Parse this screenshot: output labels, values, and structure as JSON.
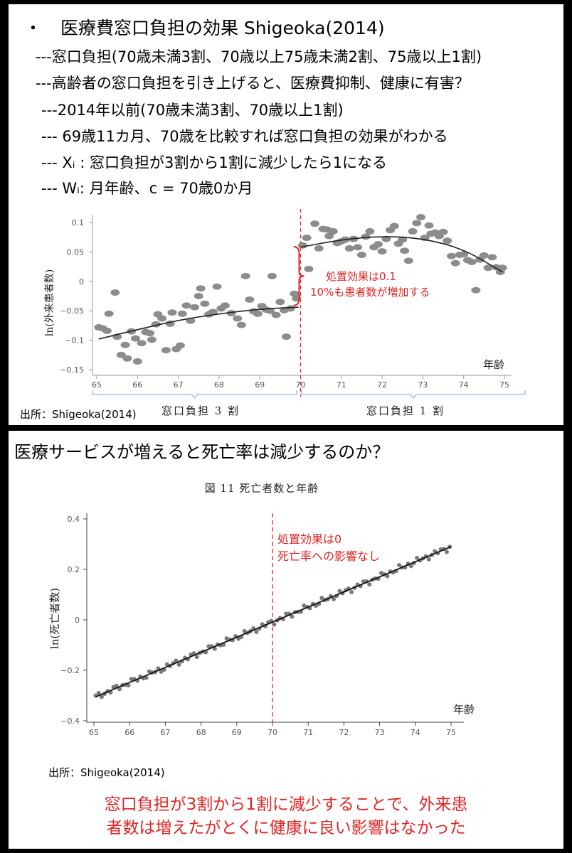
{
  "top_slide": {
    "bullet": "・",
    "title": "医療費窓口負担の効果 Shigeoka(2014)",
    "lines": [
      "---窓口負担(70歳未満3割、70歳以上75歳未満2割、75歳以上1割)",
      "---高齢者の窓口負担を引き上げると、医療費抑制、健康に有害？",
      "---2014年以前(70歳未満3割、70歳以上1割)",
      "--- 69歳11カ月、70歳を比較すれば窓口負担の効果がわかる",
      "--- Xᵢ : 窓口負担が3割から1割に減少したら1になる",
      "--- Wᵢ: 月年齢、c = 70歳0か月"
    ],
    "source": "出所：Shigeoka(2014)"
  },
  "bottom_slide": {
    "title": "医療サービスが増えると死亡率は減少するのか？",
    "source": "出所：Shigeoka(2014)",
    "conclusion_line1": "窓口負担が3割から1割に減少することで、外来患",
    "conclusion_line2": "者数は増えたがとくに健康に良い影響はなかった"
  },
  "colors": {
    "point": "#8c8c8c",
    "fit_line": "#222222",
    "cutoff": "#e02424",
    "annotation": "#e02424",
    "bracket": "#7aa0d4"
  },
  "chart_data": [
    {
      "type": "scatter",
      "title": "",
      "ylabel": "ln(外来患者数)",
      "xlabel": "年齢",
      "xlim": [
        65,
        75
      ],
      "ylim": [
        -0.15,
        0.1
      ],
      "xticks": [
        "65",
        "66",
        "67",
        "68",
        "69",
        "70",
        "71",
        "72",
        "73",
        "74",
        "75"
      ],
      "yticks": [
        "0.1",
        "0.05",
        "0",
        "−0.05",
        "−0.1",
        "−0.15"
      ],
      "cutoff": 70,
      "annotation": [
        "処置効果は0.1",
        "10%も患者数が増加する"
      ],
      "regime_labels": [
        "窓口負担 3 割",
        "窓口負担 1 割"
      ],
      "left_fit": [
        [
          65.05,
          -0.098
        ],
        [
          66,
          -0.082
        ],
        [
          67,
          -0.066
        ],
        [
          68,
          -0.055
        ],
        [
          69,
          -0.047
        ],
        [
          69.95,
          -0.044
        ]
      ],
      "right_fit": [
        [
          70,
          0.058
        ],
        [
          71,
          0.071
        ],
        [
          72,
          0.077
        ],
        [
          73,
          0.073
        ],
        [
          74,
          0.055
        ],
        [
          74.95,
          0.016
        ]
      ],
      "left_points": [
        [
          65.05,
          -0.078
        ],
        [
          65.15,
          -0.08
        ],
        [
          65.25,
          -0.084
        ],
        [
          65.3,
          -0.055
        ],
        [
          65.45,
          -0.019
        ],
        [
          65.5,
          -0.094
        ],
        [
          65.6,
          -0.125
        ],
        [
          65.7,
          -0.108
        ],
        [
          65.75,
          -0.131
        ],
        [
          65.85,
          -0.085
        ],
        [
          65.95,
          -0.097
        ],
        [
          66.0,
          -0.136
        ],
        [
          66.1,
          -0.105
        ],
        [
          66.2,
          -0.086
        ],
        [
          66.3,
          -0.088
        ],
        [
          66.35,
          -0.099
        ],
        [
          66.45,
          -0.073
        ],
        [
          66.5,
          -0.056
        ],
        [
          66.6,
          -0.063
        ],
        [
          66.7,
          -0.117
        ],
        [
          66.8,
          -0.072
        ],
        [
          66.85,
          -0.053
        ],
        [
          66.95,
          -0.115
        ],
        [
          67.05,
          -0.109
        ],
        [
          67.1,
          -0.055
        ],
        [
          67.2,
          -0.041
        ],
        [
          67.3,
          -0.067
        ],
        [
          67.4,
          -0.044
        ],
        [
          67.5,
          -0.025
        ],
        [
          67.55,
          -0.012
        ],
        [
          67.65,
          -0.038
        ],
        [
          67.75,
          -0.056
        ],
        [
          67.85,
          -0.052
        ],
        [
          67.95,
          -0.009
        ],
        [
          68.05,
          -0.046
        ],
        [
          68.15,
          -0.041
        ],
        [
          68.3,
          -0.054
        ],
        [
          68.45,
          -0.063
        ],
        [
          68.55,
          -0.074
        ],
        [
          68.65,
          0.009
        ],
        [
          68.75,
          -0.031
        ],
        [
          68.85,
          -0.051
        ],
        [
          68.95,
          -0.055
        ],
        [
          69.05,
          -0.042
        ],
        [
          69.15,
          -0.048
        ],
        [
          69.25,
          -0.05
        ],
        [
          69.3,
          0.009
        ],
        [
          69.4,
          -0.057
        ],
        [
          69.5,
          -0.035
        ],
        [
          69.6,
          -0.049
        ],
        [
          69.65,
          -0.094
        ],
        [
          69.75,
          -0.046
        ],
        [
          69.85,
          -0.021
        ],
        [
          69.9,
          -0.029
        ]
      ],
      "right_points": [
        [
          70.05,
          0.061
        ],
        [
          70.15,
          0.074
        ],
        [
          70.2,
          0.021
        ],
        [
          70.35,
          0.098
        ],
        [
          70.45,
          0.056
        ],
        [
          70.55,
          0.089
        ],
        [
          70.65,
          0.088
        ],
        [
          70.7,
          0.077
        ],
        [
          70.8,
          0.085
        ],
        [
          70.9,
          0.065
        ],
        [
          71.0,
          0.068
        ],
        [
          71.1,
          0.071
        ],
        [
          71.2,
          0.056
        ],
        [
          71.3,
          0.072
        ],
        [
          71.4,
          0.058
        ],
        [
          71.5,
          0.045
        ],
        [
          71.6,
          0.076
        ],
        [
          71.7,
          0.085
        ],
        [
          71.8,
          0.058
        ],
        [
          71.9,
          0.063
        ],
        [
          72.0,
          0.051
        ],
        [
          72.1,
          0.072
        ],
        [
          72.2,
          0.087
        ],
        [
          72.3,
          0.094
        ],
        [
          72.4,
          0.064
        ],
        [
          72.5,
          0.071
        ],
        [
          72.55,
          0.052
        ],
        [
          72.65,
          0.035
        ],
        [
          72.75,
          0.085
        ],
        [
          72.85,
          0.099
        ],
        [
          72.95,
          0.109
        ],
        [
          73.05,
          0.074
        ],
        [
          73.15,
          0.095
        ],
        [
          73.2,
          0.081
        ],
        [
          73.3,
          0.083
        ],
        [
          73.4,
          0.077
        ],
        [
          73.5,
          0.084
        ],
        [
          73.6,
          0.069
        ],
        [
          73.7,
          0.043
        ],
        [
          73.8,
          0.031
        ],
        [
          73.9,
          0.045
        ],
        [
          74.0,
          0.046
        ],
        [
          74.1,
          0.036
        ],
        [
          74.2,
          0.033
        ],
        [
          74.3,
          -0.015
        ],
        [
          74.4,
          0.037
        ],
        [
          74.5,
          0.044
        ],
        [
          74.6,
          0.023
        ],
        [
          74.7,
          0.041
        ],
        [
          74.8,
          0.024
        ],
        [
          74.9,
          0.016
        ],
        [
          74.95,
          0.023
        ]
      ]
    },
    {
      "type": "scatter",
      "title": "図 11 死亡者数と年齢",
      "ylabel": "ln(死亡者数)",
      "xlabel": "年齢",
      "xlim": [
        65,
        75
      ],
      "ylim": [
        -0.4,
        0.4
      ],
      "xticks": [
        "65",
        "66",
        "67",
        "68",
        "69",
        "70",
        "71",
        "72",
        "73",
        "74",
        "75"
      ],
      "yticks": [
        "0.4",
        "0.2",
        "0",
        "−0.2",
        "−0.4"
      ],
      "cutoff": 70,
      "annotation": [
        "処置効果は0",
        "死亡率への影響なし"
      ],
      "fit": [
        [
          65.05,
          -0.305
        ],
        [
          75,
          0.29
        ]
      ],
      "point_step_years": 0.0833,
      "point_count": 120
    }
  ]
}
